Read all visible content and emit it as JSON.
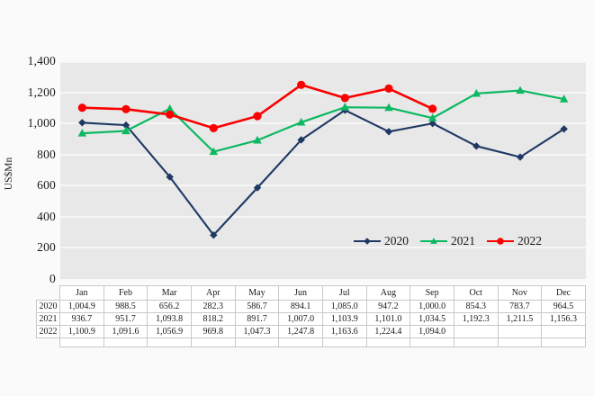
{
  "chart_data": {
    "type": "line",
    "title": "",
    "xlabel": "",
    "ylabel": "US$Mn",
    "ylim": [
      0,
      1400
    ],
    "ytick_step": 200,
    "y_tick_labels": [
      "0",
      "200",
      "400",
      "600",
      "800",
      "1,000",
      "1,200",
      "1,400"
    ],
    "grid": true,
    "plot_background": "#e8e8e8",
    "legend_position": "inside-bottom-right",
    "data_table_shown": true,
    "categories": [
      "Jan",
      "Feb",
      "Mar",
      "Apr",
      "May",
      "Jun",
      "Jul",
      "Aug",
      "Sep",
      "Oct",
      "Nov",
      "Dec"
    ],
    "series": [
      {
        "name": "2020",
        "color": "#1f3864",
        "marker": "diamond",
        "values": [
          1004.9,
          988.5,
          656.2,
          282.3,
          586.7,
          894.1,
          1085.0,
          947.2,
          1000.0,
          854.3,
          783.7,
          964.5
        ],
        "display": [
          "1,004.9",
          "988.5",
          "656.2",
          "282.3",
          "586.7",
          "894.1",
          "1,085.0",
          "947.2",
          "1,000.0",
          "854.3",
          "783.7",
          "964.5"
        ]
      },
      {
        "name": "2021",
        "color": "#0cb861",
        "marker": "triangle",
        "values": [
          936.7,
          951.7,
          1093.8,
          818.2,
          891.7,
          1007.0,
          1103.9,
          1101.0,
          1034.5,
          1192.3,
          1211.5,
          1156.3
        ],
        "display": [
          "936.7",
          "951.7",
          "1,093.8",
          "818.2",
          "891.7",
          "1,007.0",
          "1,103.9",
          "1,101.0",
          "1,034.5",
          "1,192.3",
          "1,211.5",
          "1,156.3"
        ]
      },
      {
        "name": "2022",
        "color": "#fb0000",
        "marker": "circle",
        "values": [
          1100.9,
          1091.6,
          1056.9,
          969.8,
          1047.3,
          1247.8,
          1163.6,
          1224.4,
          1094.0,
          null,
          null,
          null
        ],
        "display": [
          "1,100.9",
          "1,091.6",
          "1,056.9",
          "969.8",
          "1,047.3",
          "1,247.8",
          "1,163.6",
          "1,224.4",
          "1,094.0",
          "",
          "",
          ""
        ]
      }
    ]
  }
}
